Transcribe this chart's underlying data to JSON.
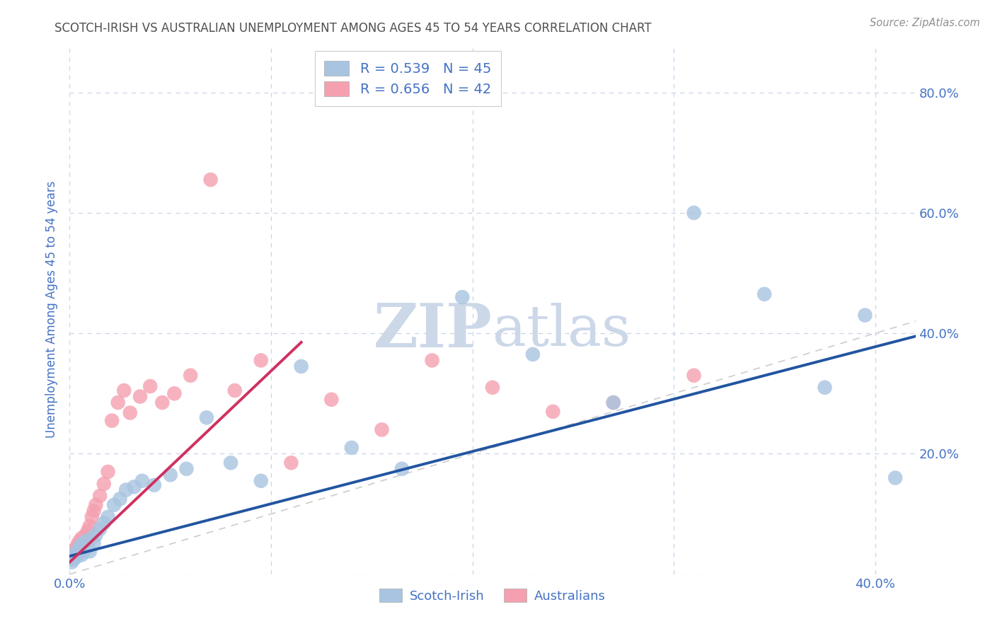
{
  "title": "SCOTCH-IRISH VS AUSTRALIAN UNEMPLOYMENT AMONG AGES 45 TO 54 YEARS CORRELATION CHART",
  "source": "Source: ZipAtlas.com",
  "ylabel": "Unemployment Among Ages 45 to 54 years",
  "xlim": [
    0.0,
    0.42
  ],
  "ylim": [
    0.0,
    0.88
  ],
  "scotch_irish_R": 0.539,
  "scotch_irish_N": 45,
  "australian_R": 0.656,
  "australian_N": 42,
  "scotch_irish_color": "#a8c4e0",
  "australian_color": "#f4a0b0",
  "scotch_irish_line_color": "#2255a0",
  "australian_line_color": "#d03060",
  "diagonal_color": "#c0c0c0",
  "watermark_color": "#ccd8e8",
  "background_color": "#ffffff",
  "grid_color": "#c8d4e8",
  "title_color": "#505050",
  "axis_color": "#4472c4",
  "scotch_irish_x": [
    0.001,
    0.002,
    0.002,
    0.003,
    0.003,
    0.004,
    0.004,
    0.005,
    0.005,
    0.006,
    0.006,
    0.007,
    0.007,
    0.008,
    0.008,
    0.009,
    0.01,
    0.011,
    0.012,
    0.013,
    0.015,
    0.017,
    0.019,
    0.022,
    0.025,
    0.028,
    0.032,
    0.036,
    0.042,
    0.05,
    0.058,
    0.068,
    0.08,
    0.095,
    0.115,
    0.14,
    0.165,
    0.195,
    0.23,
    0.27,
    0.31,
    0.345,
    0.375,
    0.395,
    0.41
  ],
  "scotch_irish_y": [
    0.02,
    0.03,
    0.025,
    0.035,
    0.028,
    0.032,
    0.04,
    0.038,
    0.045,
    0.032,
    0.05,
    0.038,
    0.042,
    0.048,
    0.055,
    0.045,
    0.038,
    0.06,
    0.052,
    0.065,
    0.075,
    0.085,
    0.095,
    0.115,
    0.125,
    0.14,
    0.145,
    0.155,
    0.148,
    0.165,
    0.175,
    0.26,
    0.185,
    0.155,
    0.345,
    0.21,
    0.175,
    0.46,
    0.365,
    0.285,
    0.6,
    0.465,
    0.31,
    0.43,
    0.16
  ],
  "australian_x": [
    0.001,
    0.002,
    0.002,
    0.003,
    0.003,
    0.004,
    0.004,
    0.005,
    0.005,
    0.006,
    0.006,
    0.007,
    0.008,
    0.008,
    0.009,
    0.01,
    0.011,
    0.012,
    0.013,
    0.015,
    0.017,
    0.019,
    0.021,
    0.024,
    0.027,
    0.03,
    0.035,
    0.04,
    0.046,
    0.052,
    0.06,
    0.07,
    0.082,
    0.095,
    0.11,
    0.13,
    0.155,
    0.18,
    0.21,
    0.24,
    0.27,
    0.31
  ],
  "australian_y": [
    0.025,
    0.03,
    0.04,
    0.035,
    0.042,
    0.038,
    0.05,
    0.045,
    0.055,
    0.042,
    0.06,
    0.05,
    0.065,
    0.058,
    0.072,
    0.08,
    0.095,
    0.105,
    0.115,
    0.13,
    0.15,
    0.17,
    0.255,
    0.285,
    0.305,
    0.268,
    0.295,
    0.312,
    0.285,
    0.3,
    0.33,
    0.655,
    0.305,
    0.355,
    0.185,
    0.29,
    0.24,
    0.355,
    0.31,
    0.27,
    0.285,
    0.33
  ],
  "si_line_start_x": 0.0,
  "si_line_start_y": 0.03,
  "si_line_end_x": 0.42,
  "si_line_end_y": 0.395,
  "au_line_start_x": 0.0,
  "au_line_start_y": 0.02,
  "au_line_end_x": 0.115,
  "au_line_end_y": 0.385
}
